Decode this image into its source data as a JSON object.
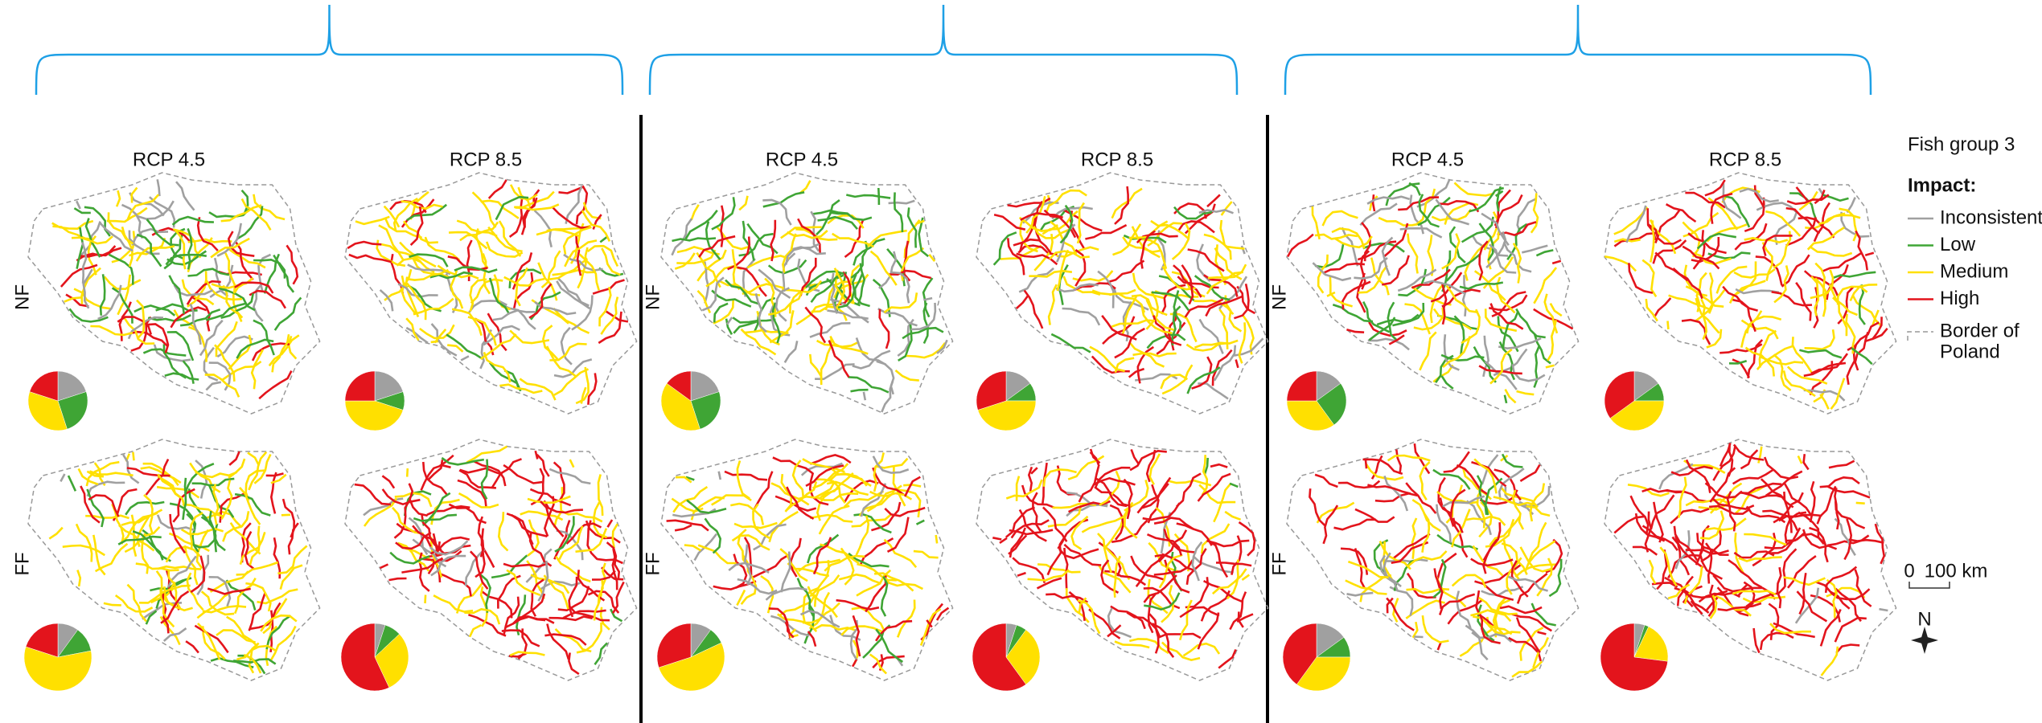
{
  "legend": {
    "title": "Fish group 3",
    "heading": "Impact:",
    "items": [
      {
        "label": "Inconsistent",
        "color": "#a0a0a0"
      },
      {
        "label": "Low",
        "color": "#3fa535"
      },
      {
        "label": "Medium",
        "color": "#ffe000"
      },
      {
        "label": "High",
        "color": "#e3141c"
      }
    ],
    "border": [
      "Border of",
      "Poland"
    ]
  },
  "scale": {
    "zero": "0",
    "label": "100 km"
  },
  "north": "N",
  "groups": [
    {
      "columns": [
        "RCP 4.5",
        "RCP 8.5"
      ],
      "rows": [
        {
          "label": "NF",
          "pies": [
            [
              20,
              25,
              35,
              20
            ],
            [
              20,
              10,
              45,
              25
            ]
          ]
        },
        {
          "label": "FF",
          "pies": [
            [
              10,
              12,
              58,
              20
            ],
            [
              5,
              8,
              30,
              57
            ]
          ]
        }
      ]
    },
    {
      "columns": [
        "RCP 4.5",
        "RCP 8.5"
      ],
      "rows": [
        {
          "label": "NF",
          "pies": [
            [
              20,
              25,
              40,
              15
            ],
            [
              15,
              10,
              45,
              30
            ]
          ]
        },
        {
          "label": "FF",
          "pies": [
            [
              10,
              8,
              52,
              30
            ],
            [
              5,
              5,
              30,
              60
            ]
          ]
        }
      ]
    },
    {
      "columns": [
        "RCP 4.5",
        "RCP 8.5"
      ],
      "rows": [
        {
          "label": "NF",
          "pies": [
            [
              15,
              25,
              35,
              25
            ],
            [
              15,
              10,
              40,
              35
            ]
          ]
        },
        {
          "label": "FF",
          "pies": [
            [
              15,
              10,
              35,
              40
            ],
            [
              5,
              2,
              20,
              73
            ]
          ]
        }
      ]
    }
  ]
}
